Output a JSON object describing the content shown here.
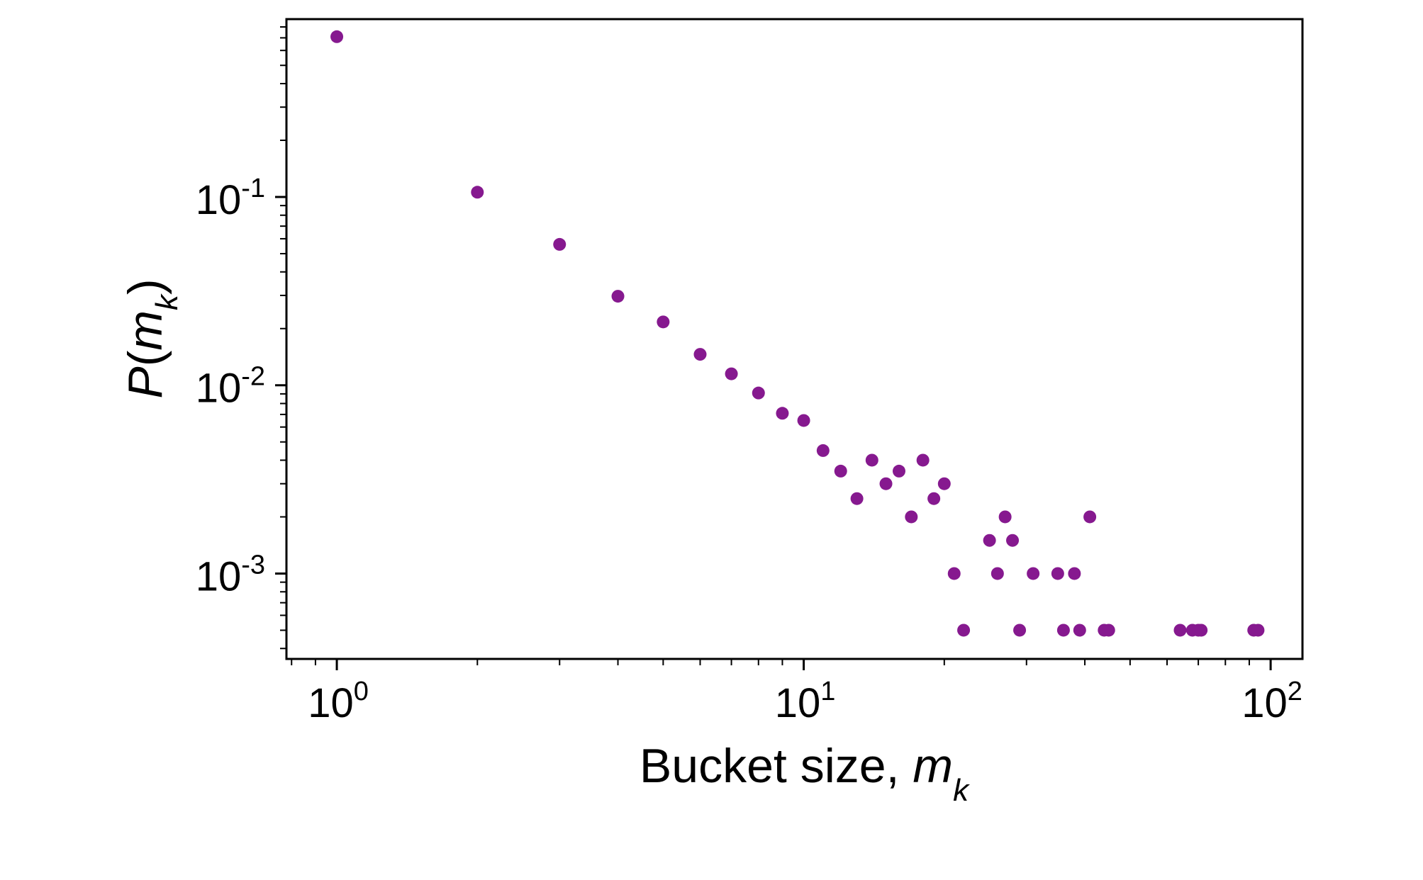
{
  "chart_data": {
    "type": "scatter",
    "xlabel": {
      "prefix": "Bucket size, ",
      "var": "m",
      "sub": "k"
    },
    "ylabel": {
      "func": "P",
      "open": "(",
      "var": "m",
      "sub": "k",
      "close": ")"
    },
    "xscale": "log",
    "yscale": "log",
    "xlim": [
      0.78,
      117
    ],
    "ylim": [
      0.000352,
      0.88
    ],
    "x_ticks": [
      {
        "value": 1,
        "base": "10",
        "exp": "0"
      },
      {
        "value": 10,
        "base": "10",
        "exp": "1"
      },
      {
        "value": 100,
        "base": "10",
        "exp": "2"
      }
    ],
    "y_ticks": [
      {
        "value": 0.1,
        "base": "10",
        "exp": "-1"
      },
      {
        "value": 0.01,
        "base": "10",
        "exp": "-2"
      },
      {
        "value": 0.001,
        "base": "10",
        "exp": "-3"
      }
    ],
    "grid": false,
    "marker_color": "#86198f",
    "series": [
      {
        "points": [
          [
            1,
            0.71
          ],
          [
            2,
            0.106
          ],
          [
            3,
            0.056
          ],
          [
            4,
            0.0297
          ],
          [
            5,
            0.0217
          ],
          [
            6,
            0.0146
          ],
          [
            7,
            0.0115
          ],
          [
            8,
            0.0091
          ],
          [
            9,
            0.0071
          ],
          [
            10,
            0.0065
          ],
          [
            11,
            0.0045
          ],
          [
            12,
            0.0035
          ],
          [
            13,
            0.0025
          ],
          [
            14,
            0.004
          ],
          [
            15,
            0.003
          ],
          [
            16,
            0.0035
          ],
          [
            17,
            0.002
          ],
          [
            18,
            0.004
          ],
          [
            19,
            0.0025
          ],
          [
            20,
            0.003
          ],
          [
            21,
            0.001
          ],
          [
            22,
            0.0005
          ],
          [
            25,
            0.0015
          ],
          [
            26,
            0.001
          ],
          [
            27,
            0.002
          ],
          [
            28,
            0.0015
          ],
          [
            29,
            0.0005
          ],
          [
            31,
            0.001
          ],
          [
            35,
            0.001
          ],
          [
            36,
            0.0005
          ],
          [
            38,
            0.001
          ],
          [
            39,
            0.0005
          ],
          [
            41,
            0.002
          ],
          [
            44,
            0.0005
          ],
          [
            45,
            0.0005
          ],
          [
            64,
            0.0005
          ],
          [
            68,
            0.0005
          ],
          [
            70,
            0.0005
          ],
          [
            71,
            0.0005
          ],
          [
            92,
            0.0005
          ],
          [
            94,
            0.0005
          ]
        ]
      }
    ]
  }
}
